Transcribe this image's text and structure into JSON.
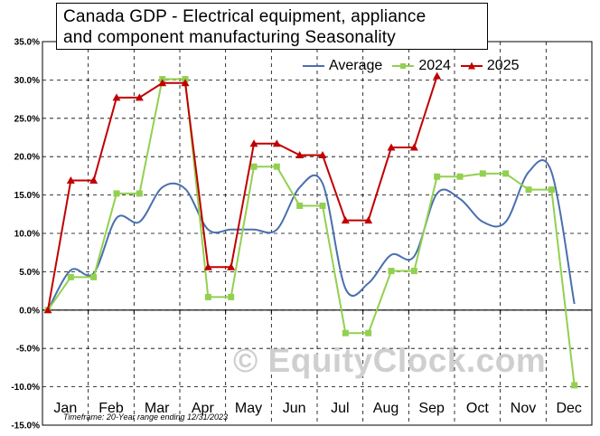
{
  "title_line1": "Canada  GDP - Electrical equipment, appliance",
  "title_line2": "and  component  manufacturing  Seasonality",
  "footnote": "Timeframe: 20-Year range ending 12/31/2023",
  "watermark": "© EquityClock.com",
  "chart_data": {
    "type": "line",
    "title": "Canada  GDP - Electrical equipment, appliance and  component  manufacturing  Seasonality",
    "legend_position": "top-right",
    "grid": true,
    "y_ticks": [
      "35.0%",
      "30.0%",
      "25.0%",
      "20.0%",
      "15.0%",
      "10.0%",
      "5.0%",
      "0.0%",
      "-5.0%",
      "-10.0%",
      "-15.0%"
    ],
    "ylim": [
      -15,
      35
    ],
    "y_unit": "%",
    "x_months": [
      "Jan",
      "Feb",
      "Mar",
      "Apr",
      "May",
      "Jun",
      "Jul",
      "Aug",
      "Sep",
      "Oct",
      "Nov",
      "Dec"
    ],
    "series": [
      {
        "name": "Average",
        "color": "#4a6fae",
        "marker": "none",
        "smooth": true,
        "x": [
          0,
          0.5,
          1,
          1.5,
          2,
          2.5,
          3,
          3.5,
          4,
          4.5,
          5,
          5.5,
          6,
          6.5,
          7,
          7.5,
          8,
          8.5,
          9,
          9.5,
          10,
          10.5,
          11,
          11.5
        ],
        "y": [
          0,
          5.2,
          4.8,
          12.0,
          11.5,
          16.0,
          15.8,
          10.5,
          10.5,
          10.5,
          10.5,
          16.0,
          16.5,
          2.8,
          3.5,
          7.2,
          7.0,
          15.2,
          14.5,
          11.5,
          11.5,
          18.0,
          18.0,
          0.8
        ]
      },
      {
        "name": "2024",
        "color": "#92d050",
        "marker": "square",
        "x": [
          0,
          0.5,
          1,
          1.5,
          2,
          2.5,
          3,
          3.5,
          4,
          4.5,
          5,
          5.5,
          6,
          6.5,
          7,
          7.5,
          8,
          8.5,
          9,
          9.5,
          10,
          10.5,
          11,
          11.5
        ],
        "y": [
          0,
          4.3,
          4.3,
          15.2,
          15.2,
          30.1,
          30.1,
          1.7,
          1.7,
          18.7,
          18.7,
          13.6,
          13.6,
          -3.0,
          -3.0,
          5.1,
          5.1,
          17.4,
          17.4,
          17.8,
          17.8,
          15.7,
          15.7,
          -9.8
        ]
      },
      {
        "name": "2025",
        "color": "#c00000",
        "marker": "triangle",
        "x": [
          0,
          0.5,
          1,
          1.5,
          2,
          2.5,
          3,
          3.5,
          4,
          4.5,
          5,
          5.5,
          6,
          6.5,
          7,
          7.5,
          8,
          8.5
        ],
        "y": [
          0,
          16.9,
          16.9,
          27.7,
          27.7,
          29.6,
          29.6,
          5.6,
          5.6,
          21.7,
          21.7,
          20.2,
          20.2,
          11.7,
          11.7,
          21.2,
          21.2,
          30.5
        ]
      }
    ]
  }
}
